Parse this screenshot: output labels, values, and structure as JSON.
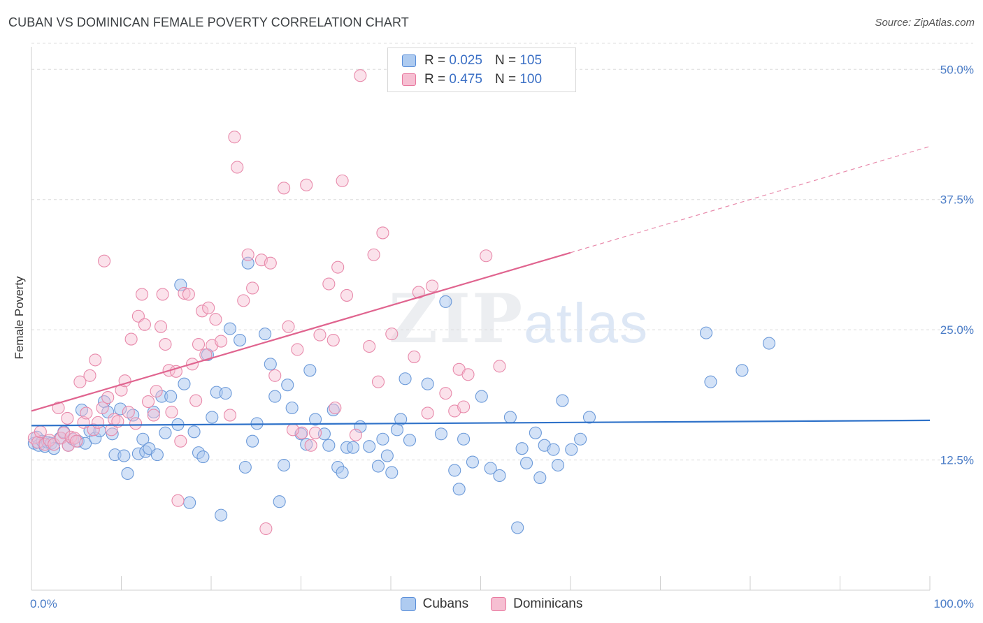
{
  "title": "CUBAN VS DOMINICAN FEMALE POVERTY CORRELATION CHART",
  "source": "Source: ZipAtlas.com",
  "watermark": {
    "zip": "ZIP",
    "atlas": "atlas"
  },
  "colors": {
    "cubans": "#5b8fd9",
    "dominicans": "#e8799f",
    "cubans_fill": "#aecbf0",
    "dominicans_fill": "#f6bfd2"
  },
  "legend": {
    "rows": [
      {
        "r_label": "R =",
        "r_value": "0.025",
        "n_label": "N =",
        "n_value": "105"
      },
      {
        "r_label": "R =",
        "r_value": "0.475",
        "n_label": "N =",
        "n_value": "100"
      }
    ]
  },
  "bottom_legend": [
    "Cubans",
    "Dominicans"
  ],
  "chart_data": {
    "type": "scatter",
    "title": "CUBAN VS DOMINICAN FEMALE POVERTY CORRELATION CHART",
    "ylabel": "Female Poverty",
    "xlabel": "",
    "xlim": [
      0,
      100
    ],
    "ylim": [
      0,
      52.5
    ],
    "x_tick_labels": [
      "0.0%",
      "100.0%"
    ],
    "y_ticks": [
      12.5,
      25.0,
      37.5,
      50.0
    ],
    "y_tick_labels": [
      "12.5%",
      "25.0%",
      "37.5%",
      "50.0%"
    ],
    "grid": "horizontal dashed",
    "legend_position": "top-center",
    "series": [
      {
        "name": "Cubans",
        "r": 0.025,
        "n": 105,
        "trend": {
          "x0": 0,
          "y0": 15.8,
          "x1": 100,
          "y1": 16.3
        },
        "points": [
          [
            0.3,
            14.1
          ],
          [
            0.6,
            14.7
          ],
          [
            0.8,
            13.9
          ],
          [
            1.2,
            14.3
          ],
          [
            1.5,
            13.8
          ],
          [
            1.8,
            14.2
          ],
          [
            2.2,
            14.1
          ],
          [
            2.5,
            13.6
          ],
          [
            3.2,
            14.6
          ],
          [
            3.6,
            15.2
          ],
          [
            4.1,
            13.9
          ],
          [
            4.6,
            14.5
          ],
          [
            5.2,
            14.3
          ],
          [
            5.6,
            17.3
          ],
          [
            6.0,
            14.1
          ],
          [
            6.5,
            15.3
          ],
          [
            7.1,
            14.6
          ],
          [
            7.6,
            15.3
          ],
          [
            8.1,
            18.1
          ],
          [
            8.5,
            17.1
          ],
          [
            9.0,
            15.0
          ],
          [
            9.3,
            13.0
          ],
          [
            9.9,
            17.4
          ],
          [
            10.3,
            12.9
          ],
          [
            10.7,
            11.2
          ],
          [
            11.3,
            16.8
          ],
          [
            11.9,
            13.1
          ],
          [
            12.4,
            14.5
          ],
          [
            12.7,
            13.3
          ],
          [
            13.1,
            13.6
          ],
          [
            13.6,
            17.1
          ],
          [
            14.0,
            13.0
          ],
          [
            14.5,
            18.6
          ],
          [
            14.9,
            15.1
          ],
          [
            15.5,
            18.6
          ],
          [
            16.3,
            15.9
          ],
          [
            16.6,
            29.3
          ],
          [
            17.0,
            19.8
          ],
          [
            17.6,
            8.4
          ],
          [
            18.1,
            15.2
          ],
          [
            18.6,
            13.2
          ],
          [
            19.1,
            12.8
          ],
          [
            19.6,
            22.6
          ],
          [
            20.1,
            16.6
          ],
          [
            20.6,
            19.0
          ],
          [
            21.1,
            7.2
          ],
          [
            21.6,
            18.9
          ],
          [
            22.1,
            25.1
          ],
          [
            23.2,
            24.0
          ],
          [
            23.8,
            11.8
          ],
          [
            24.1,
            31.4
          ],
          [
            24.6,
            14.3
          ],
          [
            25.1,
            16.0
          ],
          [
            26.0,
            24.6
          ],
          [
            26.6,
            21.7
          ],
          [
            27.1,
            18.6
          ],
          [
            27.6,
            8.5
          ],
          [
            28.1,
            12.0
          ],
          [
            28.5,
            19.7
          ],
          [
            29.0,
            17.5
          ],
          [
            30.0,
            15.0
          ],
          [
            30.6,
            14.0
          ],
          [
            31.0,
            21.1
          ],
          [
            31.6,
            16.4
          ],
          [
            32.6,
            15.0
          ],
          [
            33.1,
            13.9
          ],
          [
            33.6,
            17.3
          ],
          [
            34.1,
            11.8
          ],
          [
            34.6,
            11.3
          ],
          [
            35.1,
            13.7
          ],
          [
            35.8,
            13.7
          ],
          [
            36.6,
            15.7
          ],
          [
            37.6,
            13.8
          ],
          [
            38.6,
            11.9
          ],
          [
            39.1,
            14.5
          ],
          [
            39.6,
            12.9
          ],
          [
            40.1,
            11.3
          ],
          [
            40.7,
            15.4
          ],
          [
            41.1,
            16.4
          ],
          [
            41.6,
            20.3
          ],
          [
            42.1,
            14.4
          ],
          [
            44.1,
            19.8
          ],
          [
            45.6,
            15.0
          ],
          [
            46.1,
            27.7
          ],
          [
            47.1,
            11.5
          ],
          [
            47.6,
            9.7
          ],
          [
            48.1,
            14.5
          ],
          [
            49.1,
            12.3
          ],
          [
            50.1,
            18.6
          ],
          [
            51.1,
            11.7
          ],
          [
            52.1,
            11.0
          ],
          [
            53.3,
            16.6
          ],
          [
            54.1,
            6.0
          ],
          [
            54.6,
            13.6
          ],
          [
            55.1,
            12.2
          ],
          [
            56.1,
            15.1
          ],
          [
            56.6,
            10.8
          ],
          [
            57.1,
            13.9
          ],
          [
            58.1,
            13.5
          ],
          [
            58.6,
            12.0
          ],
          [
            59.1,
            18.2
          ],
          [
            60.1,
            13.5
          ],
          [
            61.1,
            14.5
          ],
          [
            62.1,
            16.6
          ],
          [
            75.1,
            24.7
          ],
          [
            79.1,
            21.1
          ],
          [
            82.1,
            23.7
          ],
          [
            75.6,
            20.0
          ]
        ]
      },
      {
        "name": "Dominicans",
        "r": 0.475,
        "n": 100,
        "trend": {
          "x0": 0,
          "y0": 17.2,
          "x1": 60,
          "y1": 32.4,
          "dash_to_x": 100,
          "dash_to_y": 42.6
        },
        "points": [
          [
            0.3,
            14.6
          ],
          [
            0.7,
            14.2
          ],
          [
            1.0,
            15.2
          ],
          [
            1.5,
            14.0
          ],
          [
            2.0,
            14.4
          ],
          [
            2.5,
            14.0
          ],
          [
            3.0,
            17.5
          ],
          [
            3.3,
            14.6
          ],
          [
            3.6,
            15.1
          ],
          [
            4.0,
            16.5
          ],
          [
            4.1,
            13.9
          ],
          [
            4.4,
            14.7
          ],
          [
            4.8,
            14.6
          ],
          [
            5.0,
            14.3
          ],
          [
            5.4,
            20.0
          ],
          [
            5.8,
            16.1
          ],
          [
            6.1,
            17.0
          ],
          [
            6.5,
            20.6
          ],
          [
            6.9,
            15.4
          ],
          [
            7.1,
            22.1
          ],
          [
            7.4,
            16.1
          ],
          [
            7.9,
            17.5
          ],
          [
            8.1,
            31.6
          ],
          [
            8.5,
            18.5
          ],
          [
            8.9,
            15.4
          ],
          [
            9.2,
            16.4
          ],
          [
            9.6,
            16.2
          ],
          [
            10.0,
            19.2
          ],
          [
            10.4,
            20.1
          ],
          [
            10.8,
            17.1
          ],
          [
            11.1,
            24.1
          ],
          [
            11.6,
            16.0
          ],
          [
            11.9,
            26.3
          ],
          [
            12.3,
            28.4
          ],
          [
            12.6,
            25.5
          ],
          [
            13.0,
            18.1
          ],
          [
            13.6,
            16.8
          ],
          [
            13.9,
            19.1
          ],
          [
            14.4,
            25.3
          ],
          [
            14.6,
            28.4
          ],
          [
            14.9,
            23.6
          ],
          [
            15.3,
            21.1
          ],
          [
            15.6,
            17.1
          ],
          [
            16.1,
            21.0
          ],
          [
            16.3,
            8.6
          ],
          [
            16.6,
            14.3
          ],
          [
            17.0,
            28.5
          ],
          [
            17.5,
            28.4
          ],
          [
            17.9,
            21.7
          ],
          [
            18.3,
            18.2
          ],
          [
            18.6,
            23.6
          ],
          [
            19.0,
            26.8
          ],
          [
            19.4,
            22.6
          ],
          [
            19.7,
            27.1
          ],
          [
            20.1,
            23.5
          ],
          [
            20.5,
            26.0
          ],
          [
            21.1,
            23.9
          ],
          [
            22.1,
            16.8
          ],
          [
            22.6,
            43.5
          ],
          [
            22.9,
            40.6
          ],
          [
            23.6,
            27.8
          ],
          [
            24.1,
            32.2
          ],
          [
            24.6,
            29.0
          ],
          [
            25.6,
            31.7
          ],
          [
            26.1,
            5.9
          ],
          [
            26.6,
            31.4
          ],
          [
            27.1,
            20.6
          ],
          [
            28.1,
            38.6
          ],
          [
            28.6,
            25.3
          ],
          [
            29.6,
            23.1
          ],
          [
            30.1,
            15.1
          ],
          [
            30.6,
            38.9
          ],
          [
            31.1,
            13.9
          ],
          [
            32.1,
            24.5
          ],
          [
            33.1,
            29.4
          ],
          [
            33.6,
            24.0
          ],
          [
            34.1,
            31.0
          ],
          [
            34.6,
            39.3
          ],
          [
            35.1,
            28.3
          ],
          [
            36.6,
            49.4
          ],
          [
            37.6,
            23.4
          ],
          [
            38.1,
            32.2
          ],
          [
            38.6,
            20.0
          ],
          [
            39.1,
            34.3
          ],
          [
            40.1,
            24.6
          ],
          [
            42.6,
            22.4
          ],
          [
            43.1,
            28.6
          ],
          [
            44.6,
            29.2
          ],
          [
            46.1,
            18.9
          ],
          [
            47.1,
            17.2
          ],
          [
            47.6,
            21.2
          ],
          [
            48.6,
            20.7
          ],
          [
            50.6,
            32.1
          ],
          [
            52.1,
            21.5
          ],
          [
            44.1,
            17.0
          ],
          [
            29.1,
            15.4
          ],
          [
            31.6,
            15.1
          ],
          [
            36.1,
            14.9
          ],
          [
            33.8,
            17.5
          ],
          [
            48.1,
            17.6
          ]
        ]
      }
    ]
  }
}
